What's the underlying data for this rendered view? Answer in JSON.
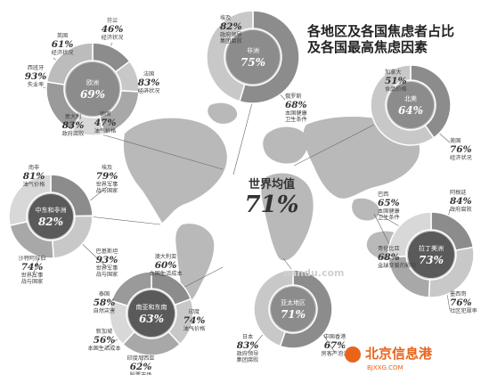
{
  "title_line1": "各地区及各国焦虑者占比",
  "title_line2": "及各国最高焦虑因素",
  "world_label": "世界均值",
  "world_value": "71%",
  "watermark_text": "北京信息港",
  "watermark_url": "BJXXG.COM",
  "watermark_mid": "nandu.com",
  "colors": {
    "dark": "#5a5a5a",
    "mid": "#8c8c8c",
    "light": "#c8c8c8",
    "map": "#b9b9b9",
    "accent": "#e8641b"
  },
  "chart_data": {
    "type": "pie",
    "world_average": 71,
    "regions": [
      {
        "id": "europe",
        "name": "欧洲",
        "value": 69,
        "value_label": "69%",
        "countries": [
          {
            "name": "英国",
            "value": 61,
            "value_label": "61%",
            "factor": "经济状况"
          },
          {
            "name": "芬兰",
            "value": 46,
            "value_label": "46%",
            "factor": "经济状况"
          },
          {
            "name": "法国",
            "value": 83,
            "value_label": "83%",
            "factor": "经济状况"
          },
          {
            "name": "德国",
            "value": 47,
            "value_label": "47%",
            "factor": "油气价格"
          },
          {
            "name": "意大利",
            "value": 83,
            "value_label": "83%",
            "factor": "政府腐败"
          },
          {
            "name": "西班牙",
            "value": 93,
            "value_label": "93%",
            "factor": "失业率"
          }
        ]
      },
      {
        "id": "africa",
        "name": "非洲",
        "value": 75,
        "value_label": "75%",
        "countries": [
          {
            "name": "埃及",
            "value": 82,
            "value_label": "82%",
            "factor": "政府领导 集团腐败"
          },
          {
            "name": "俄罗斯",
            "value": 68,
            "value_label": "68%",
            "factor": "本国健康 卫生条件"
          }
        ]
      },
      {
        "id": "north-america",
        "name": "北美",
        "value": 64,
        "value_label": "64%",
        "countries": [
          {
            "name": "加拿大",
            "value": 51,
            "value_label": "51%",
            "factor": "食品价格"
          },
          {
            "name": "美国",
            "value": 76,
            "value_label": "76%",
            "factor": "经济状况"
          }
        ]
      },
      {
        "id": "middle-east-africa",
        "name": "中东和非洲",
        "value": 82,
        "value_label": "82%",
        "countries": [
          {
            "name": "南非",
            "value": 81,
            "value_label": "81%",
            "factor": "油气价格"
          },
          {
            "name": "埃及",
            "value": 79,
            "value_label": "79%",
            "factor": "世界军事 战与国家"
          },
          {
            "name": "沙特阿拉伯",
            "value": 74,
            "value_label": "74%",
            "factor": "世界军事 战与国家"
          },
          {
            "name": "巴基斯坦",
            "value": 93,
            "value_label": "93%",
            "factor": "世界军事 战与国家"
          }
        ]
      },
      {
        "id": "latin-america",
        "name": "拉丁美洲",
        "value": 73,
        "value_label": "73%",
        "countries": [
          {
            "name": "巴西",
            "value": 65,
            "value_label": "65%",
            "factor": "本国健康 卫生条件"
          },
          {
            "name": "阿根廷",
            "value": 84,
            "value_label": "84%",
            "factor": "政府腐败"
          },
          {
            "name": "哥伦比亚",
            "value": 68,
            "value_label": "68%",
            "factor": "全球变暖的影响"
          },
          {
            "name": "墨西哥",
            "value": 76,
            "value_label": "76%",
            "factor": "社区犯罪率"
          }
        ]
      },
      {
        "id": "asia-pacific",
        "name": "亚太地区",
        "value": 71,
        "value_label": "71%",
        "countries": [
          {
            "name": "日本",
            "value": 83,
            "value_label": "83%",
            "factor": "政府领导 集团腐败"
          },
          {
            "name": "中国香港",
            "value": 67,
            "value_label": "67%",
            "factor": "房客产泡沫"
          }
        ]
      },
      {
        "id": "south-asia-pacific",
        "name": "南亚和东南",
        "value": 63,
        "value_label": "63%",
        "countries": [
          {
            "name": "澳大利亚",
            "value": 60,
            "value_label": "60%",
            "factor": "本国生活成本"
          },
          {
            "name": "泰国",
            "value": 58,
            "value_label": "58%",
            "factor": "自然灾害"
          },
          {
            "name": "印度",
            "value": 74,
            "value_label": "74%",
            "factor": "油气价格"
          },
          {
            "name": "新加坡",
            "value": 56,
            "value_label": "56%",
            "factor": "本国生活成本"
          },
          {
            "name": "印度尼西亚",
            "value": 62,
            "value_label": "62%",
            "factor": "股票市场"
          }
        ]
      }
    ]
  }
}
